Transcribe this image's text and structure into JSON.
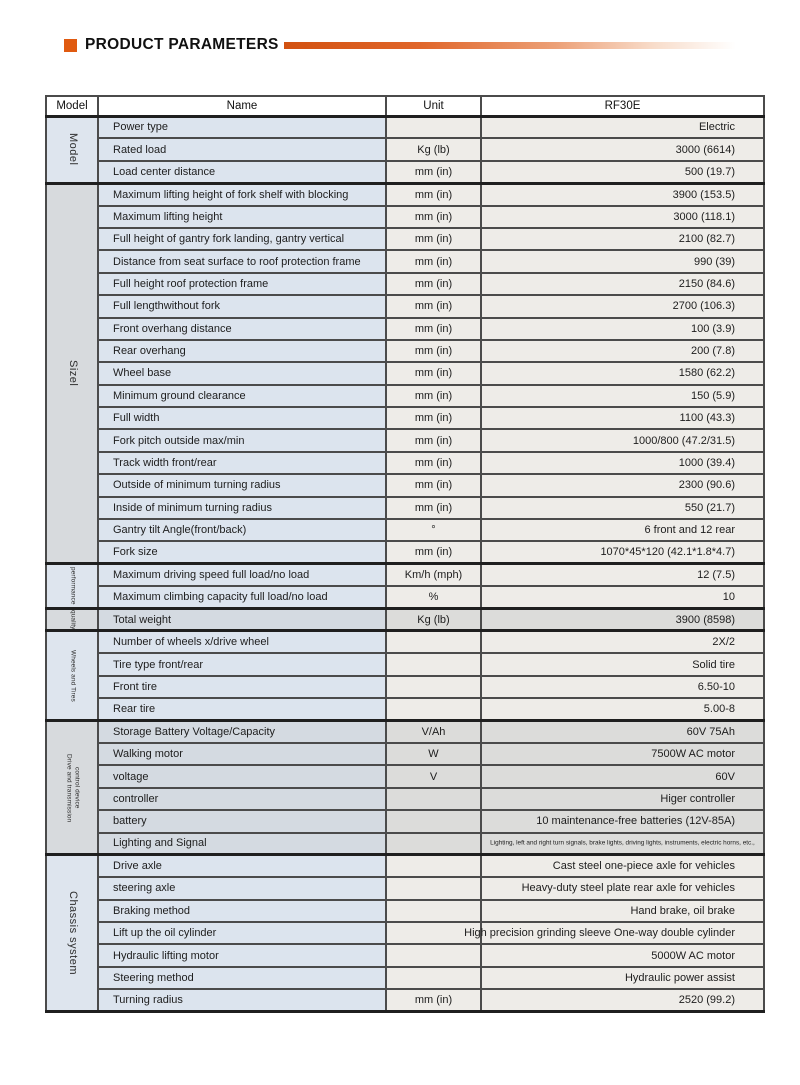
{
  "title": {
    "text": "PRODUCT PARAMETERS"
  },
  "colors": {
    "accent_orange": "#e05a10",
    "name_cell_blue": "#dce4ee",
    "value_cell_light": "#eeece8",
    "shaded_cell_gray": "#dcdcda",
    "border_dark": "#4b4b4b"
  },
  "table": {
    "headers": {
      "group": "Model",
      "name": "Name",
      "unit": "Unit",
      "model": "RF30E"
    },
    "sections": [
      {
        "label": "Model",
        "tint": "light",
        "small_label": false,
        "rows": [
          {
            "name": "Power type",
            "unit": "",
            "value": "Electric"
          },
          {
            "name": "Rated load",
            "unit": "Kg (lb)",
            "value": "3000 (6614)"
          },
          {
            "name": "Load center distance",
            "unit": "mm (in)",
            "value": "500 (19.7)"
          }
        ]
      },
      {
        "label": "Sizel",
        "tint": "light",
        "label_tint": "gray",
        "small_label": false,
        "rows": [
          {
            "name": "Maximum lifting height of fork shelf with blocking",
            "unit": "mm (in)",
            "value": "3900 (153.5)"
          },
          {
            "name": "Maximum lifting height",
            "unit": "mm (in)",
            "value": "3000 (118.1)"
          },
          {
            "name": "Full height of gantry fork landing, gantry vertical",
            "unit": "mm (in)",
            "value": "2100 (82.7)"
          },
          {
            "name": "Distance from seat surface to roof protection frame",
            "unit": "mm (in)",
            "value": "990 (39)"
          },
          {
            "name": "Full height roof protection frame",
            "unit": "mm (in)",
            "value": "2150 (84.6)"
          },
          {
            "name": "Full lengthwithout fork",
            "unit": "mm (in)",
            "value": "2700 (106.3)"
          },
          {
            "name": "Front overhang distance",
            "unit": "mm (in)",
            "value": "100 (3.9)"
          },
          {
            "name": "Rear overhang",
            "unit": "mm (in)",
            "value": "200 (7.8)"
          },
          {
            "name": "Wheel base",
            "unit": "mm (in)",
            "value": "1580 (62.2)"
          },
          {
            "name": "Minimum ground clearance",
            "unit": "mm (in)",
            "value": "150 (5.9)"
          },
          {
            "name": "Full width",
            "unit": "mm (in)",
            "value": "1100 (43.3)"
          },
          {
            "name": "Fork pitch outside max/min",
            "unit": "mm (in)",
            "value": "1000/800 (47.2/31.5)"
          },
          {
            "name": "Track width front/rear",
            "unit": "mm (in)",
            "value": "1000 (39.4)"
          },
          {
            "name": "Outside of minimum turning radius",
            "unit": "mm (in)",
            "value": "2300 (90.6)"
          },
          {
            "name": "Inside of minimum turning radius",
            "unit": "mm (in)",
            "value": "550 (21.7)"
          },
          {
            "name": "Gantry tilt Angle(front/back)",
            "unit": "°",
            "value": "6 front and 12 rear"
          },
          {
            "name": "Fork size",
            "unit": "mm (in)",
            "value": "1070*45*120 (42.1*1.8*4.7)"
          }
        ]
      },
      {
        "label": "performance",
        "tint": "light",
        "small_label": true,
        "rows": [
          {
            "name": "Maximum driving speed full load/no load",
            "unit": "Km/h (mph)",
            "value": "12 (7.5)"
          },
          {
            "name": "Maximum climbing capacity full load/no load",
            "unit": "%",
            "value": "10"
          }
        ]
      },
      {
        "label": "quality",
        "tint": "gray",
        "small_label": true,
        "rows": [
          {
            "name": "Total weight",
            "unit": "Kg (lb)",
            "value": "3900 (8598)"
          }
        ]
      },
      {
        "label": "Wheels and Tires",
        "tint": "light",
        "small_label": true,
        "rows": [
          {
            "name": "Number of wheels x/drive wheel",
            "unit": "",
            "value": "2X/2"
          },
          {
            "name": "Tire type front/rear",
            "unit": "",
            "value": "Solid tire"
          },
          {
            "name": "Front tire",
            "unit": "",
            "value": "6.50-10"
          },
          {
            "name": "Rear tire",
            "unit": "",
            "value": "5.00-8"
          }
        ]
      },
      {
        "label": [
          "Drive and  transmission",
          "control device"
        ],
        "tint": "gray",
        "small_label": true,
        "rows": [
          {
            "name": "Storage Battery Voltage/Capacity",
            "unit": "V/Ah",
            "value": "60V 75Ah"
          },
          {
            "name": "Walking motor",
            "unit": "W",
            "value": "7500W AC motor"
          },
          {
            "name": "voltage",
            "unit": "V",
            "value": "60V"
          },
          {
            "name": "controller",
            "unit": "",
            "value": "Higer controller"
          },
          {
            "name": "battery",
            "unit": "",
            "value": "10 maintenance-free batteries (12V-85A)"
          },
          {
            "name": "Lighting and Signal",
            "unit": "",
            "value": "Lighting, left and right turn signals, brake lights, driving lights, instruments, electric horns, etc.,",
            "value_small": true
          }
        ]
      },
      {
        "label": "Chassis system",
        "tint": "light",
        "small_label": false,
        "rows": [
          {
            "name": "Drive axle",
            "unit": "",
            "value": "Cast steel one-piece axle for vehicles"
          },
          {
            "name": "steering axle",
            "unit": "",
            "value": "Heavy-duty steel plate rear axle for vehicles"
          },
          {
            "name": "Braking method",
            "unit": "",
            "value": "Hand brake, oil brake"
          },
          {
            "name": "Lift up the oil cylinder",
            "unit": "",
            "value": "High precision grinding sleeve One-way double cylinder"
          },
          {
            "name": "Hydraulic lifting motor",
            "unit": "",
            "value": "5000W AC motor"
          },
          {
            "name": "Steering method",
            "unit": "",
            "value": "Hydraulic power assist"
          },
          {
            "name": "Turning radius",
            "unit": "mm (in)",
            "value": "2520 (99.2)"
          }
        ]
      }
    ]
  }
}
